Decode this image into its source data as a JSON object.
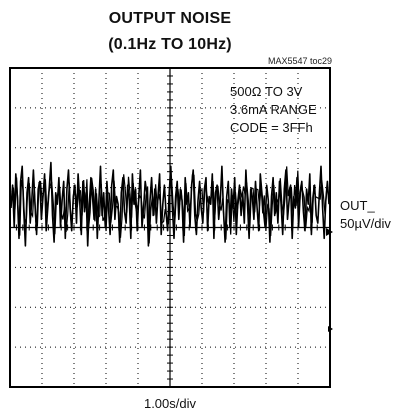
{
  "chart_data": {
    "type": "line",
    "title": [
      "OUTPUT NOISE",
      "(0.1Hz TO 10Hz)"
    ],
    "figure_tag": "MAX5547 toc29",
    "annotations": [
      "500Ω TO 3V",
      "3.6mA RANGE",
      "CODE = 3FFh"
    ],
    "channel_label": [
      "OUT_",
      "50µV/div"
    ],
    "xlabel": "1.00s/div",
    "divisions": {
      "x": 10,
      "y": 8
    },
    "grid": true,
    "series": [
      {
        "values": [
          0.2,
          0.8,
          -0.3,
          1.1,
          0.5,
          -0.6,
          0.9,
          1.3,
          0.1,
          -0.8,
          0.6,
          1.0,
          -0.2,
          0.4,
          1.2,
          0.3,
          -0.5,
          0.7,
          0.9,
          -0.1,
          0.5,
          1.1,
          -0.4,
          0.2,
          0.8,
          1.4,
          0.0,
          -0.7,
          0.6,
          0.3,
          1.0,
          -0.3,
          0.4,
          0.9,
          -0.6,
          0.7,
          1.2,
          0.2,
          -0.4,
          0.5,
          0.8,
          -0.2,
          1.1,
          0.4,
          -0.5,
          0.9,
          0.1,
          0.6,
          -0.8,
          0.3,
          1.0,
          0.5,
          -0.1,
          0.7,
          -0.6,
          0.4,
          1.3,
          0.0,
          0.6,
          -0.3,
          0.9,
          0.2,
          -0.5,
          0.8,
          1.2,
          -0.1,
          0.5,
          0.3,
          -0.7,
          0.6,
          1.0,
          0.1,
          -0.2,
          0.8,
          0.4,
          -0.6,
          1.1,
          0.3,
          0.7,
          -0.4,
          0.5,
          1.2,
          -0.3,
          0.2,
          0.9,
          0.6,
          -0.8,
          0.4,
          1.0,
          0.0,
          0.7,
          -0.2,
          0.5,
          1.1,
          -0.5,
          0.3,
          0.8,
          0.1,
          -0.4,
          0.6,
          1.3,
          0.2,
          -0.6,
          0.5,
          0.9,
          -0.1,
          0.7,
          0.4,
          -0.7,
          1.0,
          0.3,
          0.6,
          -0.3,
          0.8,
          1.2,
          0.0,
          -0.5,
          0.4,
          0.9,
          0.2,
          -0.2,
          0.7,
          1.0,
          -0.4,
          0.5,
          0.3,
          1.1,
          -0.6,
          0.6,
          0.8,
          -0.1,
          0.4,
          1.3,
          0.1,
          -0.7,
          0.5,
          0.9,
          -0.3,
          0.7,
          0.2,
          1.0,
          -0.5,
          0.4,
          0.8,
          0.0,
          0.6,
          -0.2,
          1.2,
          0.3,
          -0.6,
          0.7,
          0.5,
          -0.1,
          0.9,
          0.2,
          -0.4,
          1.1,
          0.6,
          0.1,
          -0.3,
          0.8,
          0.4,
          -0.7,
          0.5,
          1.0,
          0.0,
          0.6,
          -0.2,
          0.9,
          0.3,
          -0.5,
          0.7,
          1.2,
          -0.1,
          0.4,
          0.8,
          -0.6,
          0.5,
          0.2,
          1.0,
          -0.3,
          0.6,
          0.9,
          0.1,
          -0.4,
          0.7,
          0.3,
          1.1,
          -0.5,
          0.5,
          0.8,
          0.0,
          -0.2,
          0.6,
          1.3,
          0.2,
          -0.6,
          0.4,
          0.9,
          0.3
        ]
      }
    ]
  }
}
